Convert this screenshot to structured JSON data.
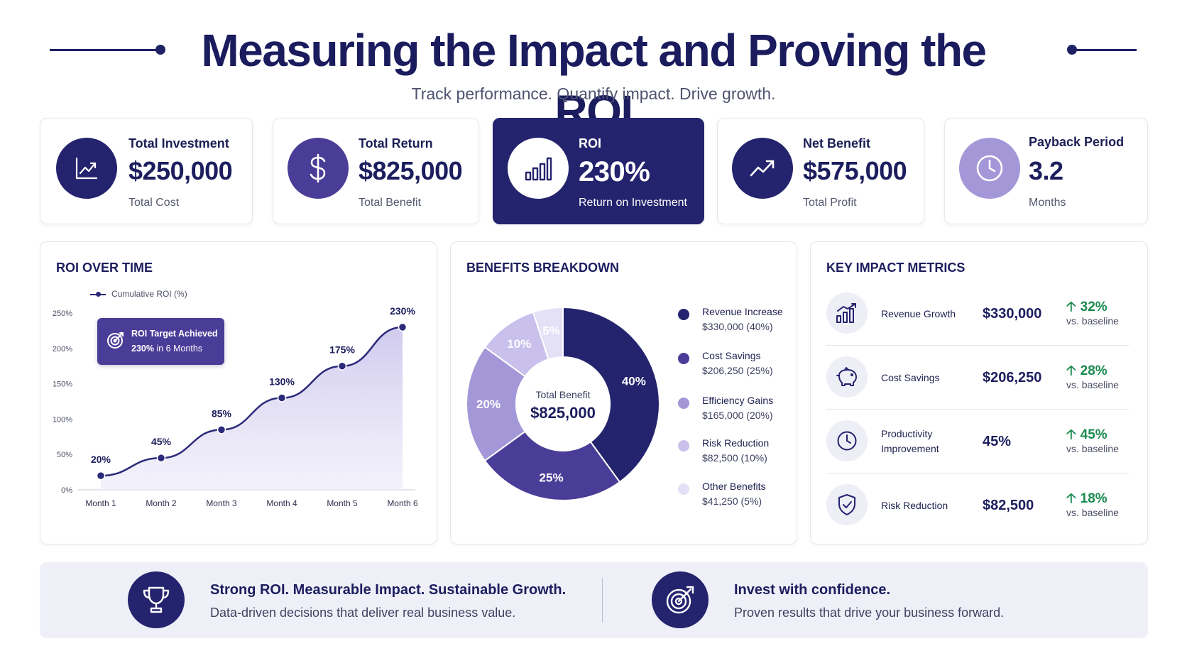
{
  "header": {
    "title": "Measuring the Impact and Proving the ROI",
    "subtitle": "Track performance. Quantify impact. Drive growth."
  },
  "kpis": [
    {
      "label": "Total Investment",
      "value": "$250,000",
      "sub": "Total Cost",
      "icon": "line-chart-icon"
    },
    {
      "label": "Total Return",
      "value": "$825,000",
      "sub": "Total Benefit",
      "icon": "dollar-icon"
    },
    {
      "label": "ROI",
      "value": "230%",
      "sub": "Return on Investment",
      "icon": "bar-chart-icon"
    },
    {
      "label": "Net Benefit",
      "value": "$575,000",
      "sub": "Total Profit",
      "icon": "trend-up-icon"
    },
    {
      "label": "Payback Period",
      "value": "3.2",
      "sub": "Months",
      "icon": "clock-icon"
    }
  ],
  "roi_panel": {
    "title": "ROI OVER TIME",
    "annotation_title": "ROI Target Achieved",
    "annotation_value": "230%",
    "annotation_text": "in 6 Months"
  },
  "benefits_panel": {
    "title": "BENEFITS BREAKDOWN",
    "center_label": "Total Benefit",
    "center_value": "$825,000"
  },
  "metrics_panel": {
    "title": "KEY IMPACT METRICS",
    "rows": [
      {
        "name": "Revenue Growth",
        "value": "$330,000",
        "change": "32%",
        "baseline": "vs. baseline",
        "icon": "bar-chart-icon"
      },
      {
        "name": "Cost Savings",
        "value": "$206,250",
        "change": "28%",
        "baseline": "vs. baseline",
        "icon": "piggy-bank-icon"
      },
      {
        "name": "Productivity Improvement",
        "value": "45%",
        "change": "45%",
        "baseline": "vs. baseline",
        "icon": "clock-icon"
      },
      {
        "name": "Risk Reduction",
        "value": "$82,500",
        "change": "18%",
        "baseline": "vs. baseline",
        "icon": "shield-check-icon"
      }
    ]
  },
  "banner": {
    "left_title": "Strong ROI. Measurable Impact. Sustainable Growth.",
    "left_text": "Data-driven decisions that deliver real business value.",
    "right_title": "Invest with confidence.",
    "right_text": "Proven results that drive your business forward."
  },
  "colors": {
    "navy": "#24236e",
    "purple": "#4a3d97",
    "lavender": "#a497d8",
    "light_lavender": "#c9c1ec",
    "pale_lavender": "#e4e0f6",
    "positive": "#1a8a4e"
  },
  "chart_data": [
    {
      "type": "area",
      "title": "ROI OVER TIME",
      "categories": [
        "Month 1",
        "Month 2",
        "Month 3",
        "Month 4",
        "Month 5",
        "Month 6"
      ],
      "series": [
        {
          "name": "Cumulative ROI (%)",
          "values": [
            20,
            45,
            85,
            130,
            175,
            230
          ],
          "labels": [
            "20%",
            "45%",
            "85%",
            "130%",
            "175%",
            "230%"
          ]
        }
      ],
      "y_ticks": [
        "0%",
        "50%",
        "100%",
        "150%",
        "200%",
        "250%"
      ],
      "ylim": [
        0,
        250
      ],
      "legend": "top-left",
      "grid": false
    },
    {
      "type": "pie",
      "title": "BENEFITS BREAKDOWN",
      "donut": true,
      "slices": [
        {
          "name": "Revenue Increase",
          "value": 330000,
          "value_label": "$330,000 (40%)",
          "percent": 40,
          "percent_label": "40%",
          "color": "#24236e"
        },
        {
          "name": "Cost Savings",
          "value": 206250,
          "value_label": "$206,250 (25%)",
          "percent": 25,
          "percent_label": "25%",
          "color": "#4a3d97"
        },
        {
          "name": "Efficiency Gains",
          "value": 165000,
          "value_label": "$165,000 (20%)",
          "percent": 20,
          "percent_label": "20%",
          "color": "#a497d8"
        },
        {
          "name": "Risk Reduction",
          "value": 82500,
          "value_label": "$82,500 (10%)",
          "percent": 10,
          "percent_label": "10%",
          "color": "#c9c1ec"
        },
        {
          "name": "Other Benefits",
          "value": 41250,
          "value_label": "$41,250 (5%)",
          "percent": 5,
          "percent_label": "5%",
          "color": "#e4e0f6"
        }
      ],
      "legend": "right"
    }
  ]
}
